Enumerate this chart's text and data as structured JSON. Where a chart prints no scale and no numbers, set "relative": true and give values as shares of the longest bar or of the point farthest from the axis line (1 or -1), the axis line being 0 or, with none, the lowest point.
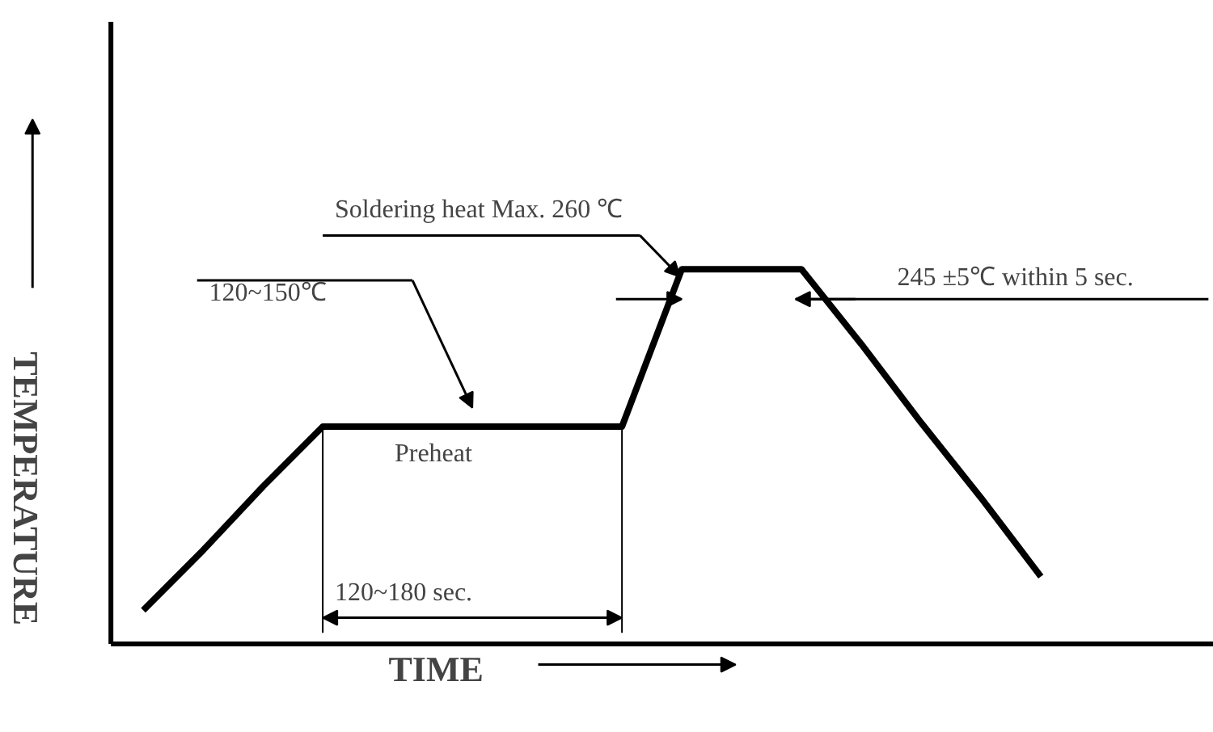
{
  "chart_data": {
    "type": "line",
    "relative": true,
    "tick_labels": false,
    "color": "#000000",
    "xlabel": "TIME",
    "ylabel": "TEMPERATURE",
    "categories": [
      null,
      null,
      null,
      null,
      null,
      null,
      null,
      null,
      null,
      null,
      null,
      null,
      null,
      null,
      null,
      null
    ],
    "values": [
      0.09,
      0.25,
      0.42,
      0.58,
      0.58,
      0.58,
      0.58,
      0.58,
      0.58,
      1,
      1,
      1,
      0.8,
      0.59,
      0.39,
      0.18
    ],
    "annotations": [
      "120~150℃",
      "Preheat",
      "120~180 sec.",
      "Soldering heat Max. 260 ℃",
      "245 ±5℃ within 5 sec."
    ]
  }
}
